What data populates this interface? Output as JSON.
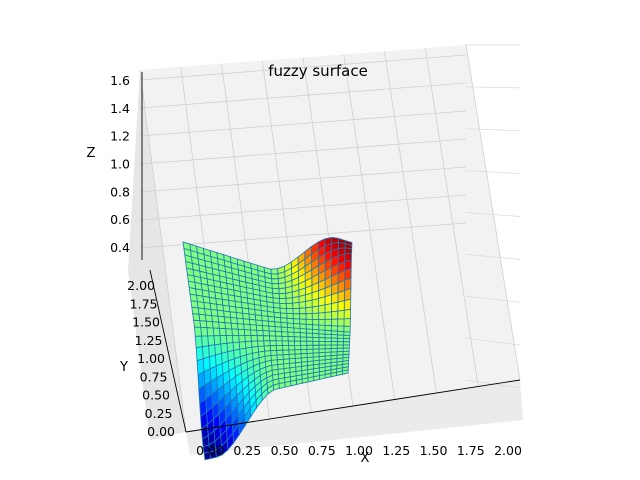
{
  "chart_data": {
    "type": "surface3d",
    "title": "fuzzy surface",
    "xlabel": "X",
    "ylabel": "Y",
    "zlabel": "Z",
    "xlim": [
      0,
      2
    ],
    "ylim": [
      0,
      2
    ],
    "zlim": [
      0.3,
      1.7
    ],
    "x_ticks": [
      "0.00",
      "0.25",
      "0.50",
      "0.75",
      "1.00",
      "1.25",
      "1.50",
      "1.75",
      "2.00"
    ],
    "y_ticks": [
      "0.00",
      "0.25",
      "0.50",
      "0.75",
      "1.00",
      "1.25",
      "1.50",
      "1.75",
      "2.00"
    ],
    "z_ticks": [
      "0.4",
      "0.6",
      "0.8",
      "1.0",
      "1.2",
      "1.4",
      "1.6"
    ],
    "grid": true,
    "colormap": "jet",
    "edge_color": "#1f77b4",
    "surface": {
      "description_values": {
        "plateau_z": 1.0,
        "min_z": 0.32,
        "max_z": 1.65,
        "low_corner": [
          0,
          0
        ],
        "high_corner": [
          2,
          2
        ]
      },
      "grid_count": 25
    }
  }
}
